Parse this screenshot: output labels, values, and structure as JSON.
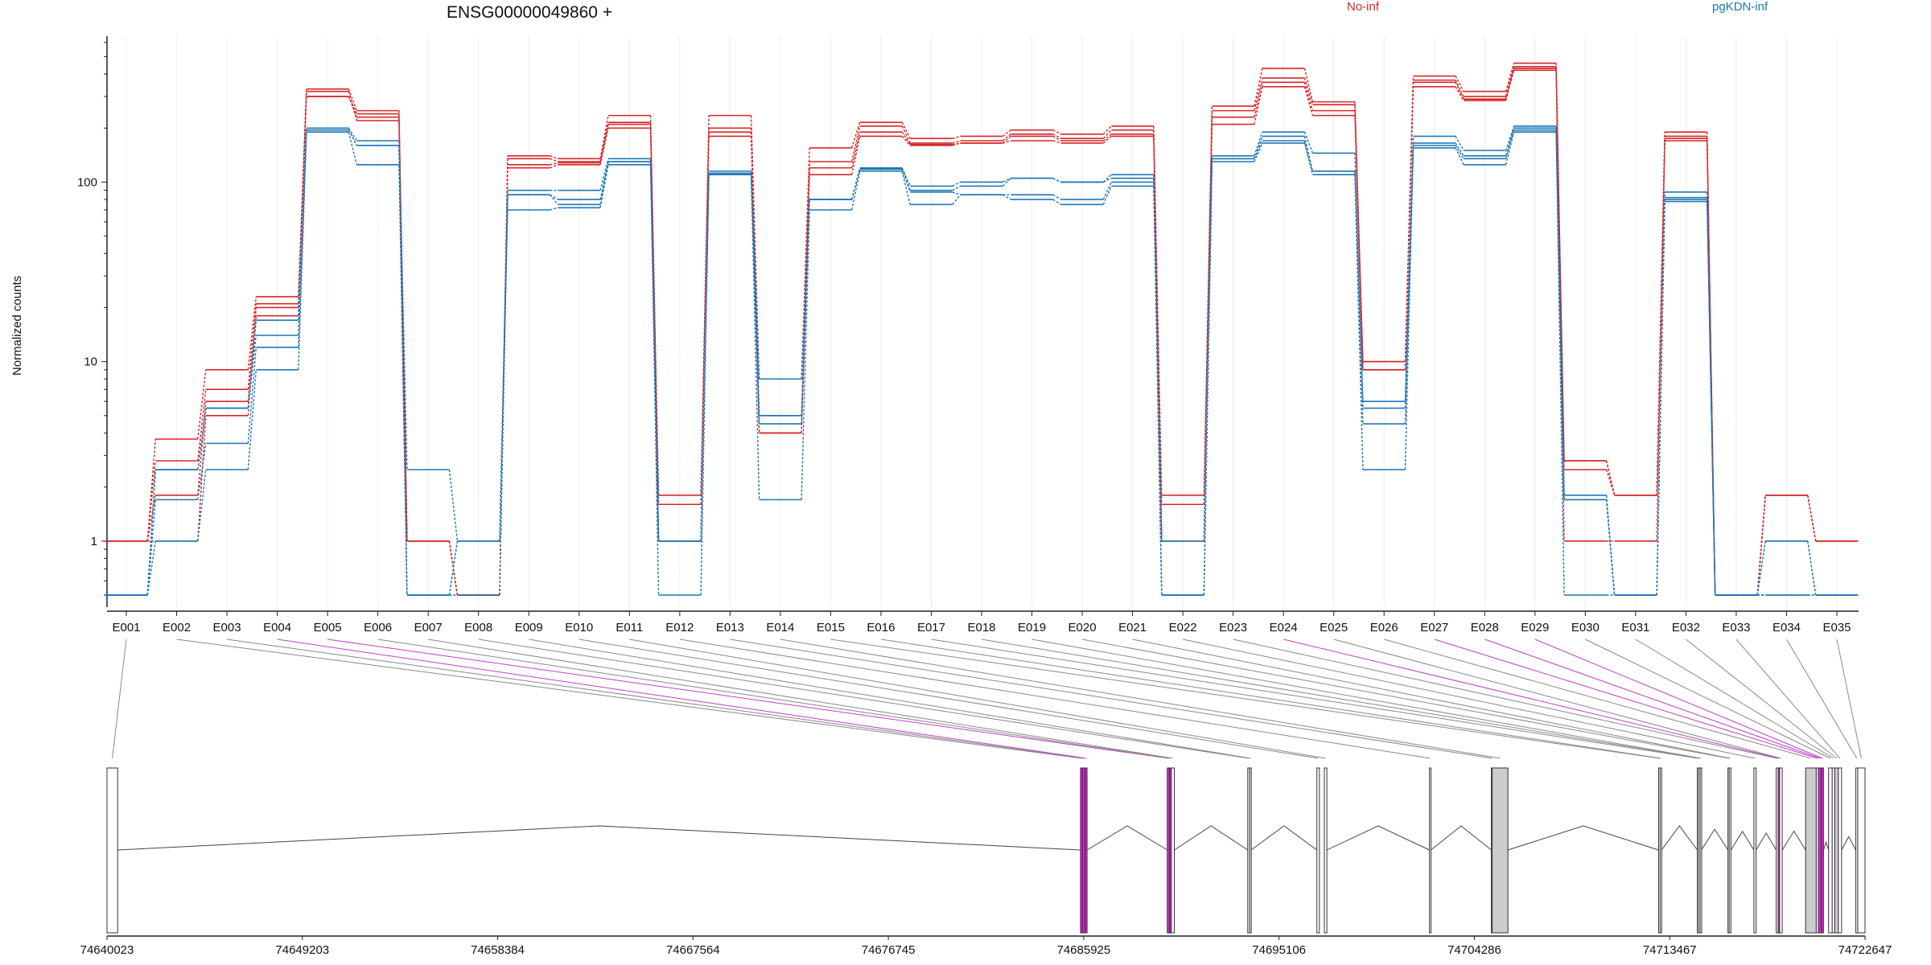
{
  "chart_data": {
    "type": "line",
    "title": "ENSG00000049860 +",
    "ylabel": "Normalized counts",
    "xlabel": "",
    "yscale": "log",
    "ylim": [
      0.5,
      650
    ],
    "yticks": [
      1,
      10,
      100
    ],
    "ytick_labels": [
      "1",
      "10",
      "100"
    ],
    "grid": "vertical",
    "legend": {
      "placement": "top-right",
      "entries": [
        {
          "label": "No-inf",
          "color": "#d62728"
        },
        {
          "label": "pgKDN-inf",
          "color": "#1f77b4"
        }
      ]
    },
    "categories": [
      "E001",
      "E002",
      "E003",
      "E004",
      "E005",
      "E006",
      "E007",
      "E008",
      "E009",
      "E010",
      "E011",
      "E012",
      "E013",
      "E014",
      "E015",
      "E016",
      "E017",
      "E018",
      "E019",
      "E020",
      "E021",
      "E022",
      "E023",
      "E024",
      "E025",
      "E026",
      "E027",
      "E028",
      "E029",
      "E030",
      "E031",
      "E032",
      "E033",
      "E034",
      "E035"
    ],
    "series": [
      {
        "group": "No-inf",
        "color": "#d62728",
        "values": [
          1,
          3.7,
          9,
          23,
          330,
          250,
          1,
          0.5,
          140,
          135,
          235,
          1.8,
          235,
          8,
          155,
          215,
          175,
          180,
          195,
          185,
          205,
          1.8,
          265,
          430,
          280,
          10,
          390,
          320,
          460,
          2.8,
          1.8,
          190,
          0.5,
          1.8,
          1
        ]
      },
      {
        "group": "No-inf",
        "color": "#d62728",
        "values": [
          1,
          2.8,
          7,
          21,
          300,
          240,
          1,
          0.5,
          135,
          130,
          215,
          1.6,
          200,
          5,
          130,
          205,
          165,
          170,
          185,
          175,
          195,
          1.6,
          250,
          380,
          270,
          9,
          370,
          300,
          440,
          2.5,
          1.8,
          180,
          0.5,
          1.8,
          1
        ]
      },
      {
        "group": "No-inf",
        "color": "#d62728",
        "values": [
          1,
          1.8,
          6,
          20,
          300,
          230,
          1,
          0.5,
          125,
          128,
          210,
          1,
          190,
          4,
          120,
          190,
          162,
          165,
          180,
          170,
          185,
          1,
          230,
          360,
          250,
          9,
          360,
          290,
          430,
          2.8,
          1.8,
          175,
          0.5,
          1.8,
          1
        ]
      },
      {
        "group": "No-inf",
        "color": "#d62728",
        "values": [
          1,
          1,
          5,
          18,
          320,
          220,
          1,
          0.5,
          120,
          125,
          200,
          1,
          180,
          4,
          110,
          180,
          160,
          165,
          170,
          165,
          180,
          1,
          210,
          340,
          235,
          10,
          340,
          285,
          420,
          1,
          1,
          170,
          0.5,
          1.8,
          1
        ]
      },
      {
        "group": "pgKDN-inf",
        "color": "#1f77b4",
        "values": [
          0.5,
          2.5,
          5.5,
          17,
          200,
          170,
          2.5,
          1,
          90,
          90,
          135,
          1,
          115,
          8,
          80,
          120,
          95,
          100,
          105,
          100,
          110,
          1,
          140,
          190,
          145,
          6,
          180,
          150,
          205,
          1.8,
          0.5,
          88,
          0.5,
          1,
          0.5
        ]
      },
      {
        "group": "pgKDN-inf",
        "color": "#1f77b4",
        "values": [
          0.5,
          2.5,
          5.5,
          14,
          195,
          160,
          0.5,
          1,
          85,
          80,
          130,
          1,
          112,
          5,
          80,
          118,
          90,
          95,
          105,
          100,
          105,
          0.5,
          135,
          180,
          115,
          5.5,
          165,
          140,
          200,
          1.7,
          0.5,
          82,
          0.5,
          1,
          0.5
        ]
      },
      {
        "group": "pgKDN-inf",
        "color": "#1f77b4",
        "values": [
          0.5,
          1.7,
          3.5,
          12,
          195,
          160,
          0.5,
          0.5,
          85,
          75,
          130,
          0.5,
          110,
          4.5,
          80,
          118,
          88,
          85,
          85,
          80,
          100,
          0.5,
          135,
          170,
          115,
          4.5,
          160,
          135,
          195,
          1.7,
          0.5,
          80,
          0.5,
          0.5,
          0.5
        ]
      },
      {
        "group": "pgKDN-inf",
        "color": "#1f77b4",
        "values": [
          0.5,
          1,
          2.5,
          9,
          190,
          125,
          0.5,
          1,
          70,
          72,
          125,
          1,
          110,
          1.7,
          70,
          115,
          75,
          85,
          80,
          75,
          95,
          0.5,
          130,
          165,
          110,
          2.5,
          155,
          125,
          190,
          0.5,
          0.5,
          78,
          0.5,
          0.5,
          0.5
        ]
      }
    ],
    "gene_model": {
      "start_label": "74640023",
      "end_label": "74722647",
      "coordinate_labels": [
        "74640023",
        "74649203",
        "74658384",
        "74667564",
        "74676745",
        "74685925",
        "74695106",
        "74704286",
        "74713467",
        "74722647"
      ],
      "exon_fill": {
        "default": "#ffffff",
        "grey": "#cccccc",
        "highlight": "#e020e0"
      },
      "exons": [
        {
          "id": "E001",
          "start": 74640023,
          "end": 74640523,
          "fill": "default",
          "link": "grey"
        },
        {
          "id": "E002",
          "start": 74685775,
          "end": 74685875,
          "fill": "highlight",
          "link": "grey"
        },
        {
          "id": "E003",
          "start": 74685875,
          "end": 74685995,
          "fill": "highlight",
          "link": "grey"
        },
        {
          "id": "E004",
          "start": 74685995,
          "end": 74686085,
          "fill": "highlight",
          "link": "highlight"
        },
        {
          "id": "E005",
          "start": 74689855,
          "end": 74689965,
          "fill": "highlight",
          "link": "highlight"
        },
        {
          "id": "E006",
          "start": 74689965,
          "end": 74690045,
          "fill": "highlight",
          "link": "grey"
        },
        {
          "id": "E007",
          "start": 74690045,
          "end": 74690185,
          "fill": "default",
          "link": "grey"
        },
        {
          "id": "E008",
          "start": 74693635,
          "end": 74693725,
          "fill": "default",
          "link": "grey"
        },
        {
          "id": "E009",
          "start": 74693725,
          "end": 74693795,
          "fill": "default",
          "link": "grey"
        },
        {
          "id": "E010",
          "start": 74696885,
          "end": 74697005,
          "fill": "default",
          "link": "grey"
        },
        {
          "id": "E011",
          "start": 74697235,
          "end": 74697355,
          "fill": "default",
          "link": "grey"
        },
        {
          "id": "E012",
          "start": 74702175,
          "end": 74702245,
          "fill": "default",
          "link": "grey"
        },
        {
          "id": "E013",
          "start": 74705085,
          "end": 74705125,
          "fill": "default",
          "link": "grey"
        },
        {
          "id": "E014",
          "start": 74705125,
          "end": 74705865,
          "fill": "grey",
          "link": "grey"
        },
        {
          "id": "E015",
          "start": 74712945,
          "end": 74713015,
          "fill": "default",
          "link": "grey"
        },
        {
          "id": "E016",
          "start": 74713015,
          "end": 74713085,
          "fill": "default",
          "link": "grey"
        },
        {
          "id": "E017",
          "start": 74714765,
          "end": 74714825,
          "fill": "default",
          "link": "grey"
        },
        {
          "id": "E018",
          "start": 74714825,
          "end": 74714895,
          "fill": "default",
          "link": "grey"
        },
        {
          "id": "E019",
          "start": 74714895,
          "end": 74714955,
          "fill": "default",
          "link": "grey"
        },
        {
          "id": "E020",
          "start": 74716205,
          "end": 74716265,
          "fill": "default",
          "link": "grey"
        },
        {
          "id": "E021",
          "start": 74716265,
          "end": 74716345,
          "fill": "default",
          "link": "grey"
        },
        {
          "id": "E022",
          "start": 74717425,
          "end": 74717525,
          "fill": "default",
          "link": "grey"
        },
        {
          "id": "E023",
          "start": 74718475,
          "end": 74718565,
          "fill": "default",
          "link": "grey"
        },
        {
          "id": "E024",
          "start": 74718565,
          "end": 74718635,
          "fill": "highlight",
          "link": "highlight"
        },
        {
          "id": "E025",
          "start": 74718635,
          "end": 74718755,
          "fill": "default",
          "link": "grey"
        },
        {
          "id": "E026",
          "start": 74719855,
          "end": 74720355,
          "fill": "grey",
          "link": "grey"
        },
        {
          "id": "E027",
          "start": 74720355,
          "end": 74720455,
          "fill": "default",
          "link": "highlight"
        },
        {
          "id": "E028",
          "start": 74720455,
          "end": 74720595,
          "fill": "highlight",
          "link": "highlight"
        },
        {
          "id": "E029",
          "start": 74720595,
          "end": 74720695,
          "fill": "highlight",
          "link": "highlight"
        },
        {
          "id": "E030",
          "start": 74720935,
          "end": 74721105,
          "fill": "default",
          "link": "grey"
        },
        {
          "id": "E031",
          "start": 74721105,
          "end": 74721225,
          "fill": "default",
          "link": "grey"
        },
        {
          "id": "E032",
          "start": 74721225,
          "end": 74721395,
          "fill": "grey",
          "link": "grey"
        },
        {
          "id": "E033",
          "start": 74721395,
          "end": 74721545,
          "fill": "default",
          "link": "grey"
        },
        {
          "id": "E034",
          "start": 74722215,
          "end": 74722305,
          "fill": "default",
          "link": "grey"
        },
        {
          "id": "E035",
          "start": 74722305,
          "end": 74722647,
          "fill": "default",
          "link": "grey"
        }
      ],
      "introns": [
        [
          74640523,
          74685775
        ],
        [
          74686085,
          74689855
        ],
        [
          74690185,
          74693635
        ],
        [
          74693795,
          74696885
        ],
        [
          74697355,
          74702175
        ],
        [
          74702245,
          74705085
        ],
        [
          74705865,
          74712945
        ],
        [
          74713085,
          74714765
        ],
        [
          74714955,
          74716205
        ],
        [
          74716345,
          74717425
        ],
        [
          74717525,
          74718475
        ],
        [
          74718755,
          74719855
        ],
        [
          74720695,
          74720935
        ],
        [
          74721545,
          74722215
        ]
      ]
    }
  }
}
